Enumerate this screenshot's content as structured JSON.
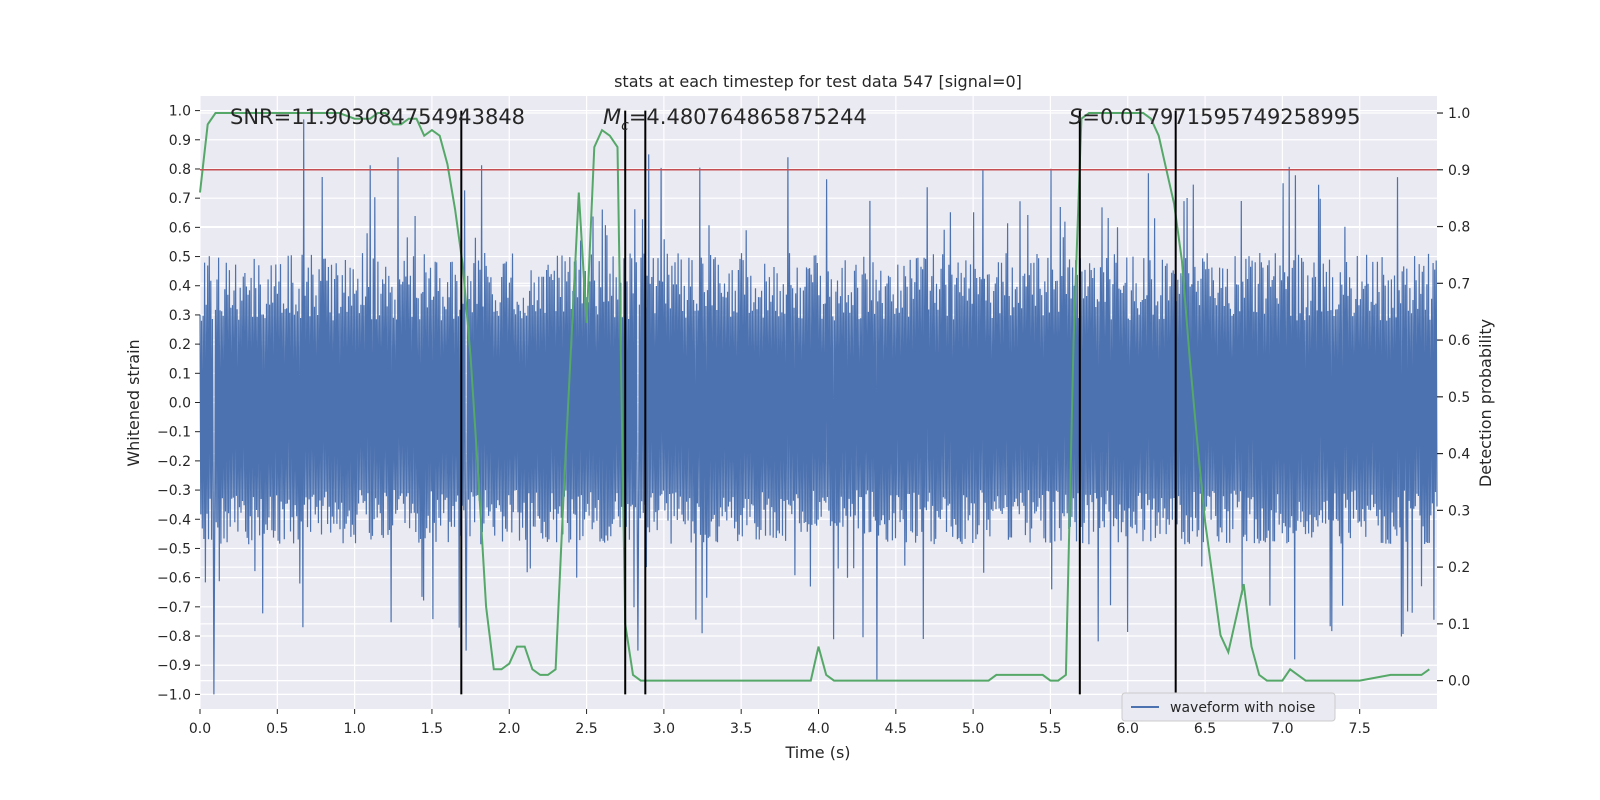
{
  "chart_data": {
    "type": "line",
    "title": "stats at each timestep for test data 547 [signal=0]",
    "xlabel": "Time (s)",
    "ylabel": "Whitened strain",
    "y2label": "Detection probability",
    "xlim": [
      0,
      8
    ],
    "ylim": [
      -1.05,
      1.05
    ],
    "y2lim": [
      -0.05,
      1.03
    ],
    "x_ticks": [
      0.0,
      0.5,
      1.0,
      1.5,
      2.0,
      2.5,
      3.0,
      3.5,
      4.0,
      4.5,
      5.0,
      5.5,
      6.0,
      6.5,
      7.0,
      7.5
    ],
    "x_tick_labels": [
      "0.0",
      "0.5",
      "1.0",
      "1.5",
      "2.0",
      "2.5",
      "3.0",
      "3.5",
      "4.0",
      "4.5",
      "5.0",
      "5.5",
      "6.0",
      "6.5",
      "7.0",
      "7.5"
    ],
    "y_ticks": [
      1.0,
      0.9,
      0.8,
      0.7,
      0.6,
      0.5,
      0.4,
      0.3,
      0.2,
      0.1,
      0.0,
      -0.1,
      -0.2,
      -0.3,
      -0.4,
      -0.5,
      -0.6,
      -0.7,
      -0.8,
      -0.9,
      -1.0
    ],
    "y_tick_labels": [
      "1.0",
      "0.9",
      "0.8",
      "0.7",
      "0.6",
      "0.5",
      "0.4",
      "0.3",
      "0.2",
      "0.1",
      "0.0",
      "−0.1",
      "−0.2",
      "−0.3",
      "−0.4",
      "−0.5",
      "−0.6",
      "−0.7",
      "−0.8",
      "−0.9",
      "−1.0"
    ],
    "y2_ticks": [
      1.0,
      0.9,
      0.8,
      0.7,
      0.6,
      0.5,
      0.4,
      0.3,
      0.2,
      0.1,
      0.0
    ],
    "y2_tick_labels": [
      "1.0",
      "0.9",
      "0.8",
      "0.7",
      "0.6",
      "0.5",
      "0.4",
      "0.3",
      "0.2",
      "0.1",
      "0.0"
    ],
    "grid": true,
    "legend": {
      "position": "lower-right",
      "entries": [
        "waveform with noise"
      ]
    },
    "annotations": {
      "snr": "SNR=11.903084754943848",
      "mc_symbol": "M",
      "mc_sub": "c",
      "mc_value": "=4.480764865875244",
      "s_symbol": "S",
      "s_value": "=0.017971595749258995"
    },
    "series": [
      {
        "name": "waveform with noise",
        "axis": "left",
        "color": "#4c72b0",
        "x_range": [
          0,
          8
        ],
        "n_samples": 1600,
        "envelope_typical": [
          -0.45,
          0.5
        ],
        "notable_peaks": [
          {
            "x": 0.09,
            "y": -1.0
          },
          {
            "x": 0.67,
            "y": 0.97
          },
          {
            "x": 1.28,
            "y": 0.84
          },
          {
            "x": 1.72,
            "y": -0.85
          },
          {
            "x": 2.83,
            "y": -0.85
          },
          {
            "x": 2.9,
            "y": 0.85
          },
          {
            "x": 4.38,
            "y": -0.95
          },
          {
            "x": 3.8,
            "y": 0.84
          },
          {
            "x": 7.08,
            "y": -0.88
          }
        ]
      },
      {
        "name": "detection probability",
        "axis": "right",
        "color": "#55a868",
        "x": [
          0.0,
          0.05,
          0.1,
          0.15,
          0.3,
          0.5,
          0.7,
          0.9,
          1.0,
          1.1,
          1.15,
          1.2,
          1.25,
          1.3,
          1.35,
          1.4,
          1.45,
          1.5,
          1.55,
          1.6,
          1.65,
          1.7,
          1.75,
          1.8,
          1.85,
          1.9,
          1.95,
          2.0,
          2.05,
          2.1,
          2.15,
          2.2,
          2.25,
          2.3,
          2.35,
          2.4,
          2.45,
          2.5,
          2.55,
          2.6,
          2.65,
          2.7,
          2.75,
          2.8,
          2.85,
          2.9,
          2.95,
          3.0,
          3.05,
          3.1,
          3.15,
          3.3,
          3.5,
          3.7,
          3.8,
          3.9,
          3.95,
          4.0,
          4.05,
          4.1,
          4.15,
          4.25,
          4.4,
          4.6,
          4.8,
          5.0,
          5.05,
          5.1,
          5.15,
          5.2,
          5.25,
          5.3,
          5.35,
          5.4,
          5.45,
          5.5,
          5.55,
          5.6,
          5.65,
          5.7,
          5.75,
          5.8,
          5.9,
          6.0,
          6.1,
          6.15,
          6.2,
          6.25,
          6.3,
          6.35,
          6.4,
          6.45,
          6.5,
          6.55,
          6.6,
          6.65,
          6.7,
          6.75,
          6.8,
          6.85,
          6.9,
          6.95,
          7.0,
          7.05,
          7.1,
          7.15,
          7.2,
          7.3,
          7.5,
          7.7,
          7.8,
          7.9,
          7.95
        ],
        "values": [
          0.86,
          0.98,
          1.0,
          1.0,
          1.0,
          1.0,
          1.0,
          1.0,
          0.99,
          0.99,
          1.0,
          1.0,
          0.98,
          0.98,
          0.99,
          0.99,
          0.96,
          0.97,
          0.96,
          0.91,
          0.83,
          0.73,
          0.57,
          0.36,
          0.13,
          0.02,
          0.02,
          0.03,
          0.06,
          0.06,
          0.02,
          0.01,
          0.01,
          0.02,
          0.32,
          0.59,
          0.86,
          0.63,
          0.94,
          0.97,
          0.96,
          0.94,
          0.1,
          0.01,
          0.0,
          0.0,
          0.0,
          0.0,
          0.0,
          0.0,
          0.0,
          0.0,
          0.0,
          0.0,
          0.0,
          0.0,
          0.0,
          0.06,
          0.01,
          0.0,
          0.0,
          0.0,
          0.0,
          0.0,
          0.0,
          0.0,
          0.0,
          0.0,
          0.01,
          0.01,
          0.01,
          0.01,
          0.01,
          0.01,
          0.01,
          0.0,
          0.0,
          0.01,
          0.6,
          0.99,
          1.0,
          1.0,
          1.0,
          1.0,
          1.0,
          0.99,
          0.96,
          0.9,
          0.84,
          0.74,
          0.57,
          0.42,
          0.28,
          0.18,
          0.08,
          0.05,
          0.11,
          0.17,
          0.06,
          0.01,
          0.0,
          0.0,
          0.0,
          0.02,
          0.01,
          0.0,
          0.0,
          0.0,
          0.0,
          0.01,
          0.01,
          0.01,
          0.02
        ]
      }
    ],
    "threshold": {
      "axis": "right",
      "value": 0.9,
      "color": "#c44e52"
    },
    "vertical_lines_x": [
      1.69,
      2.75,
      2.88,
      5.69,
      6.31
    ],
    "vertical_line_range": [
      -1.0,
      1.0
    ]
  }
}
